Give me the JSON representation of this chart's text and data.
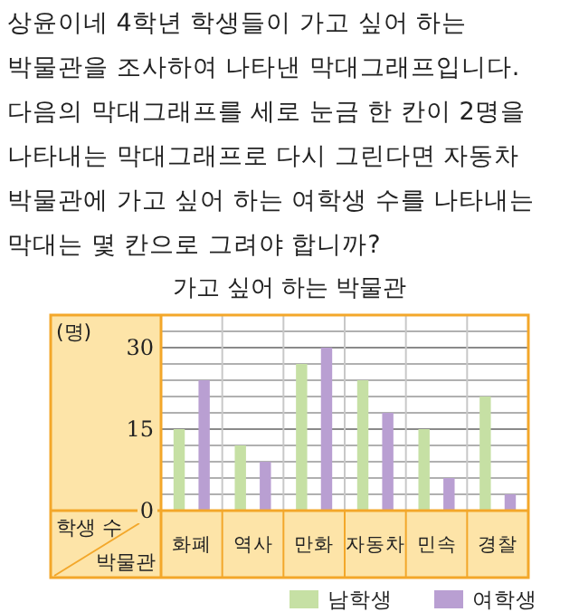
{
  "chart_data": {
    "type": "bar",
    "title": "가고 싶어 하는 박물관",
    "xlabel": "박물관",
    "ylabel": "학생 수",
    "annotations": [
      "상윤이네 4학년 학생들이 가고 싶어 하는 박물관을 조사하여 나타낸 막대그래프입니다. 다음의 막대그래프를 세로 눈금 한 칸이 2명을 나타내는 막대그래프로 다시 그린다면 자동차 박물관에 가고 싶어 하는 여학생 수를 나타내는 막대는 몇 칸으로 그려야 합니까?",
      "(명)"
    ],
    "categories": [
      "화폐",
      "역사",
      "만화",
      "자동차",
      "민속",
      "경찰"
    ],
    "series": [
      {
        "name": "남학생",
        "color": "#c6e0a4",
        "values": [
          15,
          12,
          27,
          24,
          15,
          21
        ]
      },
      {
        "name": "여학생",
        "color": "#b99fd2",
        "values": [
          24,
          9,
          30,
          18,
          6,
          3
        ]
      }
    ],
    "ylim": [
      0,
      36
    ],
    "yticks": [
      0,
      {
        "value": 3,
        "label": null
      },
      {
        "value": 6,
        "label": null
      },
      {
        "value": 9,
        "label": null
      },
      {
        "value": 12,
        "label": null
      },
      15,
      {
        "value": 18,
        "label": null
      },
      {
        "value": 21,
        "label": null
      },
      {
        "value": 24,
        "label": null
      },
      {
        "value": 27,
        "label": null
      },
      30,
      {
        "value": 33,
        "label": null
      }
    ],
    "grid": "y",
    "legend": "bottom right"
  }
}
